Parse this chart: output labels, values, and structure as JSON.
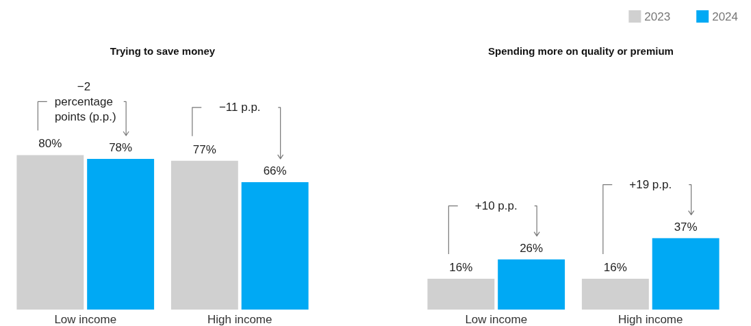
{
  "chart_data": [
    {
      "type": "bar",
      "title": "Trying to save money",
      "categories": [
        "Low income",
        "High income"
      ],
      "series": [
        {
          "color": "#d0d0d0",
          "values": [
            80,
            77
          ],
          "value_labels": [
            "80%",
            "77%"
          ]
        },
        {
          "color": "#00a9f4",
          "values": [
            78,
            66
          ],
          "value_labels": [
            "78%",
            "66%"
          ]
        }
      ],
      "annotations": [
        "−2 percentage points (p.p.)",
        "−11 p.p."
      ],
      "legend": false
    },
    {
      "type": "bar",
      "title": "Spending more on quality or premium",
      "categories": [
        "Low income",
        "High income"
      ],
      "series": [
        {
          "name": "2023",
          "color": "#d0d0d0",
          "values": [
            16,
            16
          ],
          "value_labels": [
            "16%",
            "16%"
          ]
        },
        {
          "name": "2024",
          "color": "#00a9f4",
          "values": [
            26,
            37
          ],
          "value_labels": [
            "26%",
            "37%"
          ]
        }
      ],
      "annotations": [
        "+10 p.p.",
        "+19 p.p."
      ],
      "legend": "top right"
    }
  ]
}
